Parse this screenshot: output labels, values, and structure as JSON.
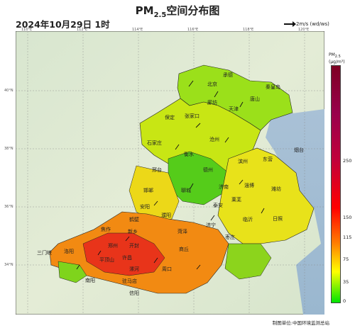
{
  "title_main": "PM",
  "title_sub": "2.5",
  "title_rest": "空间分布图",
  "datetime": "2024年10月29日 1时",
  "wind_legend": "2m/s (wd/ws)",
  "top_ticks": [
    "110°E",
    "112°E",
    "114°E",
    "116°E",
    "118°E",
    "120°E"
  ],
  "left_ticks": [
    "40°N",
    "38°N",
    "36°N",
    "34°N"
  ],
  "colorbar": {
    "title_line1": "PM",
    "title_sub": "2.5",
    "title_line2": "(μg/m³)",
    "ticks": [
      "250",
      "150",
      "115",
      "75",
      "35",
      "0"
    ],
    "colors": [
      "#7e0023",
      "#99004c",
      "#ff0000",
      "#ff7e00",
      "#ffff00",
      "#00e400"
    ]
  },
  "cities": [
    "北京",
    "承德",
    "秦皇岛",
    "唐山",
    "天津",
    "廊坊",
    "保定",
    "张家口",
    "石家庄",
    "沧州",
    "衡水",
    "邢台",
    "德州",
    "滨州",
    "东营",
    "淄博",
    "潍坊",
    "烟台",
    "邯郸",
    "聊城",
    "济南",
    "泰安",
    "莱芜",
    "临沂",
    "日照",
    "济宁",
    "枣庄",
    "菏泽",
    "安阳",
    "鹤壁",
    "新乡",
    "濮阳",
    "焦作",
    "郑州",
    "开封",
    "商丘",
    "洛阳",
    "三门峡",
    "平顶山",
    "许昌",
    "漯河",
    "周口",
    "南阳",
    "驻马店",
    "信阳"
  ],
  "footer": "制图单位:中国环境监测总站"
}
